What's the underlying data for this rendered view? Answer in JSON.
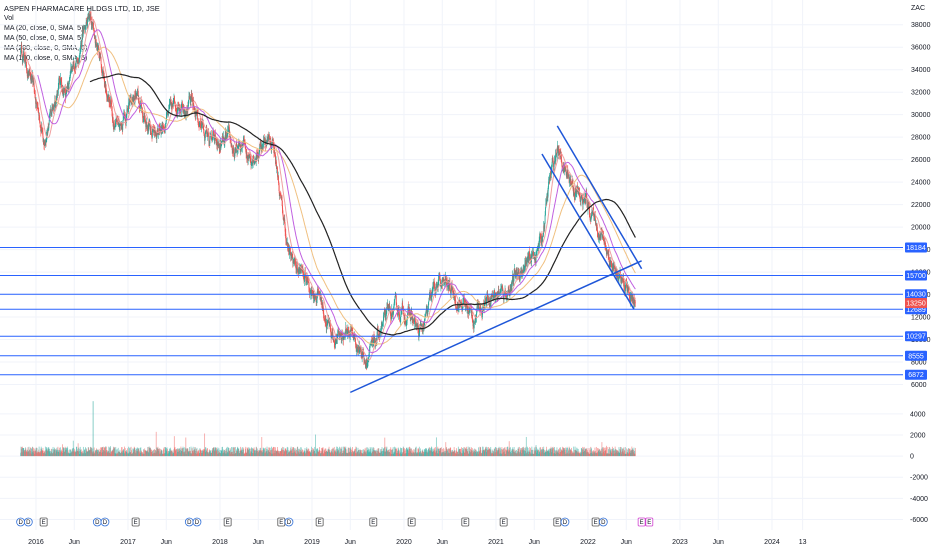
{
  "header": {
    "title": "ASPEN PHARMACARE HLDGS LTD, 1D, JSE",
    "indicators": [
      "Vol",
      "MA (20, close, 0, SMA, 5)",
      "MA (50, close, 0, SMA, 5)",
      "MA (200, close, 0, SMA, 5)",
      "MA (100, close, 0, SMA, 5)"
    ]
  },
  "colors": {
    "up": "#26a69a",
    "down": "#ef5350",
    "ma20": "#f0a0a0",
    "ma50": "#c060e0",
    "ma200": "#222222",
    "ma100": "#f0c080",
    "level_line": "#2962ff",
    "trend_line": "#1e56d8",
    "last_price_bg": "#ef5350",
    "level_label_bg": "#2962ff"
  },
  "chart_data": {
    "type": "candlestick",
    "symbol": "ASPEN PHARMACARE HLDGS LTD, 1D, JSE",
    "currency": "ZAC",
    "x_ticks": [
      "2016",
      "Jun",
      "2017",
      "Jun",
      "2018",
      "Jun",
      "2019",
      "Jun",
      "2020",
      "Jun",
      "2021",
      "Jun",
      "2022",
      "Jun",
      "2023",
      "Jun",
      "2024",
      "13"
    ],
    "price_ticks": [
      6000,
      8000,
      10000,
      12000,
      14000,
      16000,
      18000,
      20000,
      22000,
      24000,
      26000,
      28000,
      30000,
      32000,
      34000,
      36000,
      38000
    ],
    "price_range": [
      4800,
      40200
    ],
    "volume_ticks": [
      4000,
      2000,
      0,
      -2000,
      -4000,
      -6000
    ],
    "volume_range": [
      -7000,
      5500
    ],
    "price_path": [
      [
        "2015-11",
        36000
      ],
      [
        "2015-12",
        34000
      ],
      [
        "2016-01",
        31000
      ],
      [
        "2016-02",
        28000
      ],
      [
        "2016-03",
        30000
      ],
      [
        "2016-04",
        33000
      ],
      [
        "2016-05",
        32000
      ],
      [
        "2016-06",
        34000
      ],
      [
        "2016-07",
        37000
      ],
      [
        "2016-08",
        38500
      ],
      [
        "2016-09",
        36000
      ],
      [
        "2016-10",
        33000
      ],
      [
        "2016-11",
        30000
      ],
      [
        "2016-12",
        29500
      ],
      [
        "2017-01",
        30500
      ],
      [
        "2017-02",
        31500
      ],
      [
        "2017-03",
        30000
      ],
      [
        "2017-04",
        28500
      ],
      [
        "2017-05",
        29000
      ],
      [
        "2017-06",
        29500
      ],
      [
        "2017-07",
        30500
      ],
      [
        "2017-08",
        31500
      ],
      [
        "2017-09",
        31000
      ],
      [
        "2017-10",
        30000
      ],
      [
        "2017-11",
        28500
      ],
      [
        "2017-12",
        27500
      ],
      [
        "2018-01",
        27000
      ],
      [
        "2018-02",
        27500
      ],
      [
        "2018-03",
        26500
      ],
      [
        "2018-04",
        27000
      ],
      [
        "2018-05",
        26500
      ],
      [
        "2018-06",
        27000
      ],
      [
        "2018-07",
        28000
      ],
      [
        "2018-08",
        27500
      ],
      [
        "2018-09",
        22000
      ],
      [
        "2018-10",
        17500
      ],
      [
        "2018-11",
        16500
      ],
      [
        "2018-12",
        15500
      ],
      [
        "2019-01",
        14500
      ],
      [
        "2019-02",
        14000
      ],
      [
        "2019-03",
        11500
      ],
      [
        "2019-04",
        10000
      ],
      [
        "2019-05",
        10500
      ],
      [
        "2019-06",
        10800
      ],
      [
        "2019-07",
        9500
      ],
      [
        "2019-08",
        8500
      ],
      [
        "2019-09",
        9000
      ],
      [
        "2019-10",
        11000
      ],
      [
        "2019-11",
        12000
      ],
      [
        "2019-12",
        12500
      ],
      [
        "2020-01",
        12500
      ],
      [
        "2020-02",
        12000
      ],
      [
        "2020-03",
        10300
      ],
      [
        "2020-04",
        12000
      ],
      [
        "2020-05",
        14500
      ],
      [
        "2020-06",
        15000
      ],
      [
        "2020-07",
        14500
      ],
      [
        "2020-08",
        13500
      ],
      [
        "2020-09",
        13000
      ],
      [
        "2020-10",
        11800
      ],
      [
        "2020-11",
        13000
      ],
      [
        "2020-12",
        14000
      ],
      [
        "2021-01",
        14200
      ],
      [
        "2021-02",
        14000
      ],
      [
        "2021-03",
        15000
      ],
      [
        "2021-04",
        16000
      ],
      [
        "2021-05",
        16500
      ],
      [
        "2021-06",
        17500
      ],
      [
        "2021-07",
        19000
      ],
      [
        "2021-08",
        24000
      ],
      [
        "2021-09",
        27000
      ],
      [
        "2021-10",
        25000
      ],
      [
        "2021-11",
        24000
      ],
      [
        "2021-12",
        22500
      ],
      [
        "2022-01",
        22000
      ],
      [
        "2022-02",
        20500
      ],
      [
        "2022-03",
        19000
      ],
      [
        "2022-04",
        17000
      ],
      [
        "2022-05",
        15000
      ],
      [
        "2022-06",
        14500
      ],
      [
        "2022-07",
        13250
      ]
    ],
    "series": [
      {
        "name": "MA (20, close, 0, SMA, 5)",
        "color": "#f0a0a0"
      },
      {
        "name": "MA (50, close, 0, SMA, 5)",
        "color": "#c060e0"
      },
      {
        "name": "MA (200, close, 0, SMA, 5)",
        "color": "#222222"
      },
      {
        "name": "MA (100, close, 0, SMA, 5)",
        "color": "#f0c080"
      }
    ],
    "horizontal_levels": [
      18184,
      15700,
      14030,
      12689,
      10297,
      8555,
      6872
    ],
    "last_price": 13250,
    "trend_lines": [
      {
        "from": [
          "2019-06",
          5300
        ],
        "to": [
          "2022-08",
          17000
        ]
      },
      {
        "from": [
          "2021-09",
          29000
        ],
        "to": [
          "2022-08",
          16300
        ]
      },
      {
        "from": [
          "2021-07",
          26500
        ],
        "to": [
          "2022-07",
          12700
        ]
      }
    ],
    "event_markers": [
      {
        "date": "2015-11",
        "label": "D"
      },
      {
        "date": "2015-12",
        "label": "D"
      },
      {
        "date": "2016-02",
        "label": "E"
      },
      {
        "date": "2016-09",
        "label": "D"
      },
      {
        "date": "2016-10",
        "label": "D"
      },
      {
        "date": "2017-02",
        "label": "E"
      },
      {
        "date": "2017-09",
        "label": "D"
      },
      {
        "date": "2017-10",
        "label": "D"
      },
      {
        "date": "2018-02",
        "label": "E"
      },
      {
        "date": "2018-09",
        "label": "E"
      },
      {
        "date": "2018-10",
        "label": "D"
      },
      {
        "date": "2019-02",
        "label": "E"
      },
      {
        "date": "2019-09",
        "label": "E"
      },
      {
        "date": "2020-02",
        "label": "E"
      },
      {
        "date": "2020-09",
        "label": "E"
      },
      {
        "date": "2021-02",
        "label": "E"
      },
      {
        "date": "2021-09",
        "label": "E"
      },
      {
        "date": "2021-10",
        "label": "D"
      },
      {
        "date": "2022-02",
        "label": "E"
      },
      {
        "date": "2022-03",
        "label": "D"
      },
      {
        "date": "2022-08",
        "label": "E"
      },
      {
        "date": "2022-09",
        "label": "E"
      }
    ]
  }
}
